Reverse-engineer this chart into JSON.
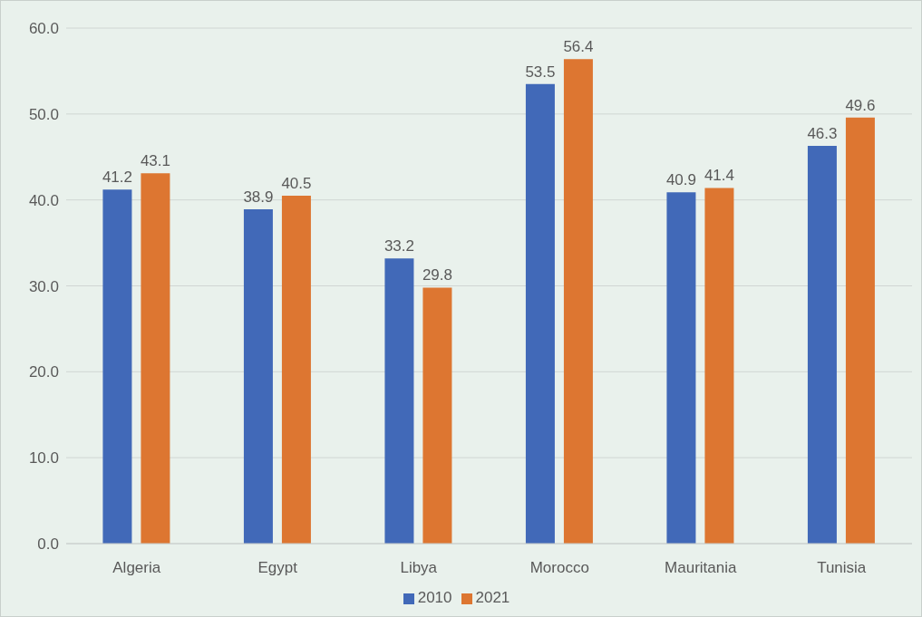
{
  "chart_data": {
    "type": "bar",
    "categories": [
      "Algeria",
      "Egypt",
      "Libya",
      "Morocco",
      "Mauritania",
      "Tunisia"
    ],
    "series": [
      {
        "name": "2010",
        "color": "#4169b8",
        "values": [
          41.2,
          38.9,
          33.2,
          53.5,
          40.9,
          46.3
        ]
      },
      {
        "name": "2021",
        "color": "#dd7631",
        "values": [
          43.1,
          40.5,
          29.8,
          56.4,
          41.4,
          49.6
        ]
      }
    ],
    "ylim": [
      0,
      60
    ],
    "yticks": [
      {
        "value": 0,
        "label": "0.0"
      },
      {
        "value": 10,
        "label": "10.0"
      },
      {
        "value": 20,
        "label": "20.0"
      },
      {
        "value": 30,
        "label": "30.0"
      },
      {
        "value": 40,
        "label": "40.0"
      },
      {
        "value": 50,
        "label": "50.0"
      },
      {
        "value": 60,
        "label": "60.0"
      }
    ],
    "grid": "y",
    "legend": "bottom",
    "data_labels": true
  }
}
